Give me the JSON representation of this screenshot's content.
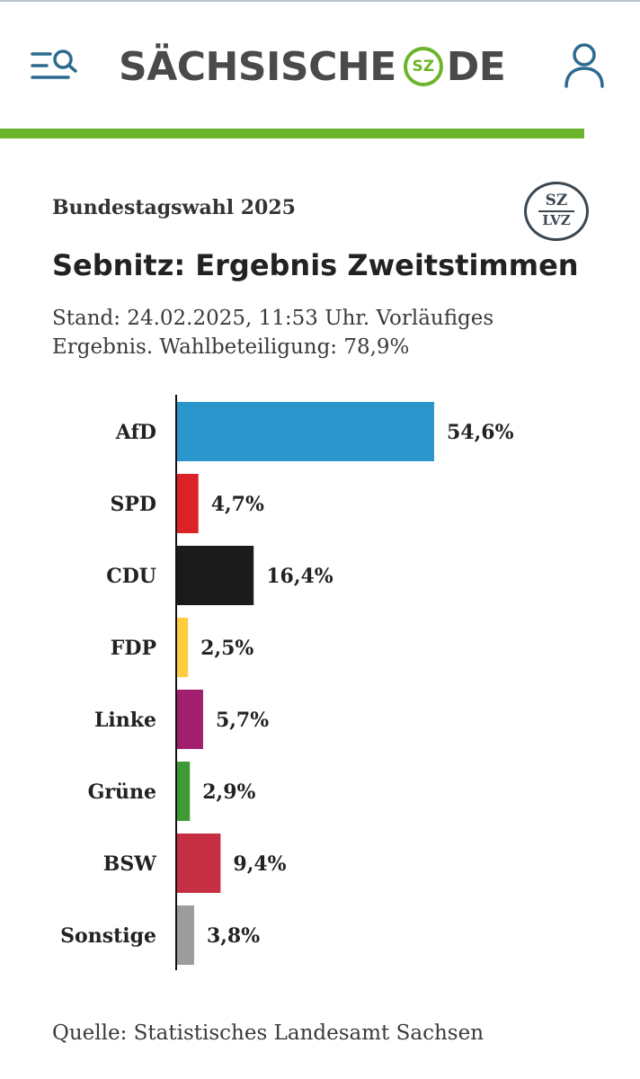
{
  "header": {
    "brand_left": "SÄCHSISCHE",
    "brand_badge": "SZ",
    "brand_right": "DE",
    "menu_icon": "menu-search-icon",
    "user_icon": "user-icon",
    "brand_color": "#6cb42b"
  },
  "article": {
    "eyebrow": "Bundestagswahl 2025",
    "stamp_top": "SZ",
    "stamp_bottom": "LVZ",
    "title": "Sebnitz: Ergebnis Zweitstimmen",
    "meta_line1": "Stand: 24.02.2025, 11:53 Uhr. Vorläufiges",
    "meta_line2": "Ergebnis. Wahlbeteiligung: 78,9%",
    "source": "Quelle: Statistisches Landesamt Sachsen"
  },
  "chart_data": {
    "type": "bar",
    "orientation": "horizontal",
    "categories": [
      "AfD",
      "SPD",
      "CDU",
      "FDP",
      "Linke",
      "Grüne",
      "BSW",
      "Sonstige"
    ],
    "values": [
      54.6,
      4.7,
      16.4,
      2.5,
      5.7,
      2.9,
      9.4,
      3.8
    ],
    "value_labels": [
      "54,6%",
      "4,7%",
      "16,4%",
      "2,5%",
      "5,7%",
      "2,9%",
      "9,4%",
      "3,8%"
    ],
    "colors": [
      "#2a96cc",
      "#dc2226",
      "#1b1b1b",
      "#fccb3e",
      "#a11f6e",
      "#3e9a35",
      "#c52e43",
      "#9c9c9c"
    ],
    "grid": false
  }
}
